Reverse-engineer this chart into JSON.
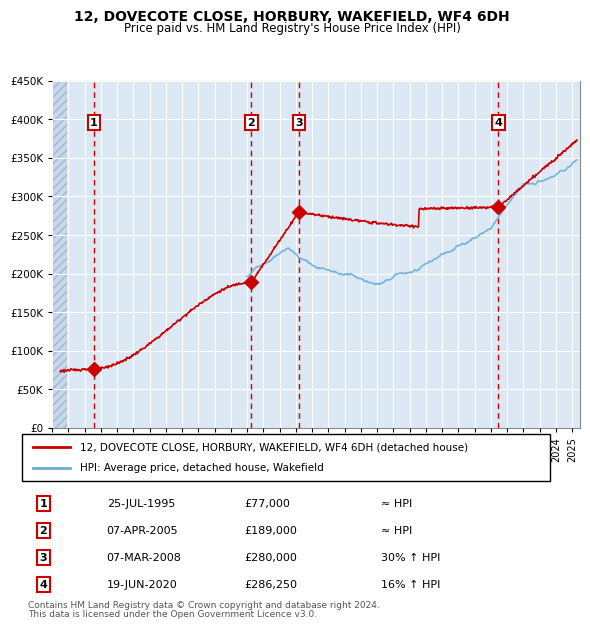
{
  "title": "12, DOVECOTE CLOSE, HORBURY, WAKEFIELD, WF4 6DH",
  "subtitle": "Price paid vs. HM Land Registry's House Price Index (HPI)",
  "transactions": [
    {
      "num": 1,
      "date": "25-JUL-1995",
      "price": 77000,
      "year": 1995.57,
      "vs_hpi": "≈ HPI"
    },
    {
      "num": 2,
      "date": "07-APR-2005",
      "price": 189000,
      "year": 2005.27,
      "vs_hpi": "≈ HPI"
    },
    {
      "num": 3,
      "date": "07-MAR-2008",
      "price": 280000,
      "year": 2008.18,
      "vs_hpi": "30% ↑ HPI"
    },
    {
      "num": 4,
      "date": "19-JUN-2020",
      "price": 286250,
      "year": 2020.47,
      "vs_hpi": "16% ↑ HPI"
    }
  ],
  "legend_line1": "12, DOVECOTE CLOSE, HORBURY, WAKEFIELD, WF4 6DH (detached house)",
  "legend_line2": "HPI: Average price, detached house, Wakefield",
  "footer_line1": "Contains HM Land Registry data © Crown copyright and database right 2024.",
  "footer_line2": "This data is licensed under the Open Government Licence v3.0.",
  "ylim": [
    0,
    450000
  ],
  "xlim_start": 1993.0,
  "xlim_end": 2025.5,
  "hpi_color": "#6baed6",
  "price_color": "#cc0000",
  "bg_color": "#dce9f5",
  "plot_bg": "#dce9f5",
  "hatch_color": "#b0c4de",
  "grid_color": "#ffffff",
  "vline_color": "#cc0000",
  "label_box_color": "#cc0000"
}
